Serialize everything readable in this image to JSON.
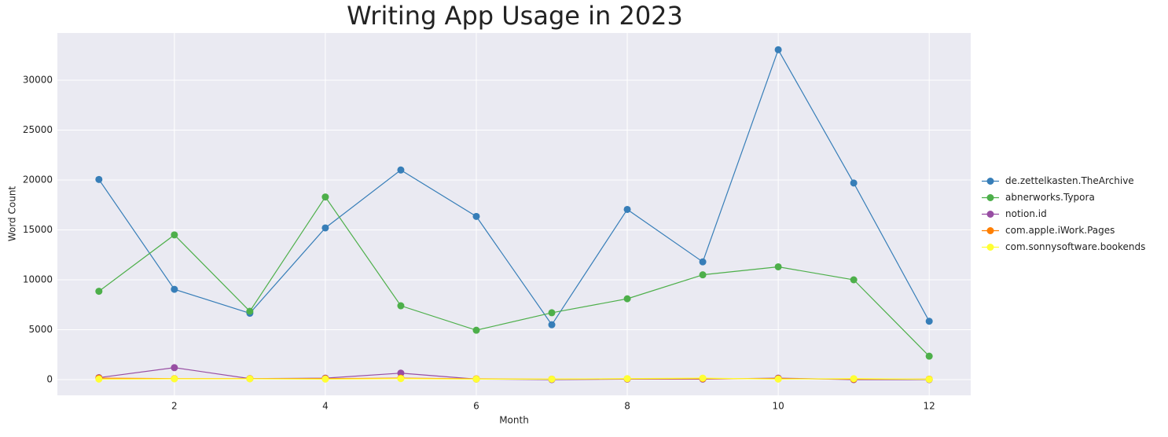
{
  "chart_data": {
    "type": "line",
    "title": "Writing App Usage in 2023",
    "x_label": "Month",
    "y_label": "Word Count",
    "x": [
      1,
      2,
      3,
      4,
      5,
      6,
      7,
      8,
      9,
      10,
      11,
      12
    ],
    "series": [
      {
        "name": "de.zettelkasten.TheArchive",
        "color": "#377eb8",
        "values": [
          20050,
          9050,
          6650,
          15200,
          21000,
          16350,
          5500,
          17050,
          11800,
          33050,
          19700,
          5850
        ]
      },
      {
        "name": "abnerworks.Typora",
        "color": "#4daf4a",
        "values": [
          8850,
          14500,
          6850,
          18300,
          7400,
          4950,
          6700,
          8100,
          10500,
          11300,
          10000,
          2350
        ]
      },
      {
        "name": "notion.id",
        "color": "#984ea3",
        "values": [
          200,
          1200,
          100,
          150,
          650,
          50,
          0,
          50,
          50,
          150,
          0,
          0
        ]
      },
      {
        "name": "com.apple.iWork.Pages",
        "color": "#ff7f00",
        "values": [
          150,
          100,
          100,
          100,
          150,
          80,
          50,
          80,
          100,
          100,
          50,
          50
        ]
      },
      {
        "name": "com.sonnysoftware.bookends",
        "color": "#ffff33",
        "values": [
          50,
          80,
          80,
          50,
          100,
          50,
          50,
          100,
          150,
          50,
          100,
          30
        ]
      }
    ],
    "xlim": [
      0.45,
      12.55
    ],
    "xticks": [
      2,
      4,
      6,
      8,
      10,
      12
    ],
    "ylim": [
      -1575,
      34725
    ],
    "yticks": [
      0,
      5000,
      10000,
      15000,
      20000,
      25000,
      30000
    ],
    "grid": true,
    "legend": "right"
  }
}
